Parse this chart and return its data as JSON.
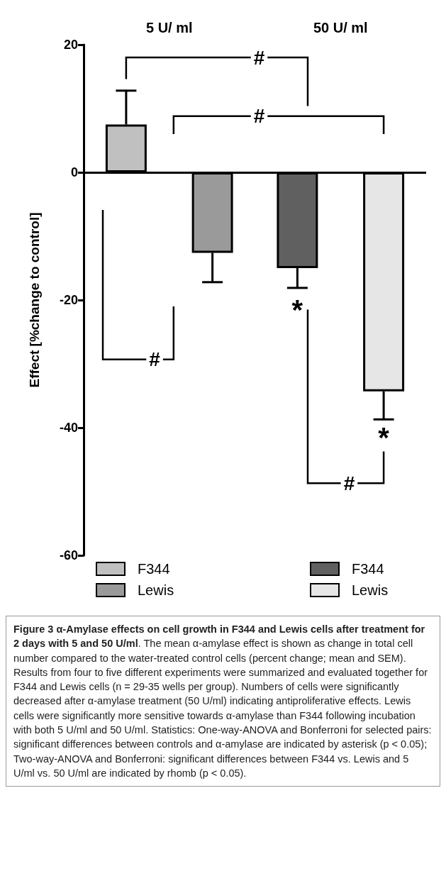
{
  "chart_data": {
    "type": "bar",
    "title": "Figure 3 α-Amylase effects on cell growth in F344 and Lewis cells after treatment for 2 days with 5 and 50 U/ml",
    "ylabel": "Effect [%change to control]",
    "categories": [
      "5 U/ ml",
      "50 U/ ml"
    ],
    "series": [
      {
        "name": "F344",
        "colors": [
          "#c0c0c0",
          "#606060"
        ],
        "values": [
          7.5,
          -15
        ],
        "errors": [
          5.3,
          3.1
        ]
      },
      {
        "name": "Lewis",
        "colors": [
          "#9a9a9a",
          "#e6e6e6"
        ],
        "values": [
          -12.6,
          -34.3
        ],
        "errors": [
          4.6,
          4.4
        ]
      }
    ],
    "ylim": [
      -60,
      20
    ],
    "yticks": [
      -60,
      -40,
      -20,
      0,
      20
    ],
    "legend": "bottom",
    "ref_lines": [
      {
        "axis": "y",
        "value": 0,
        "color": "#000000"
      }
    ],
    "annotations": [
      "#",
      "#",
      "#",
      "#",
      "*",
      "*",
      ". The mean α-amylase effect is shown as change in total cell number compared to the water-treated control cells (percent change; mean and SEM). Results from four to five different experiments were summarized and evaluated together for F344 and Lewis cells (n = 29-35 wells per group). Numbers of cells were significantly decreased after α-amylase treatment (50 U/ml) indicating antiproliferative effects. Lewis cells were significantly more sensitive towards α-amylase than F344 following incubation with both 5 U/ml and 50 U/ml. Statistics: One-way-ANOVA and Bonferroni for selected pairs: significant differences between controls and α-amylase are indicated by asterisk (p < 0.05); Two-way-ANOVA and Bonferroni: significant differences between F344 vs. Lewis and 5 U/ml vs. 50 U/ml are indicated by rhomb (p < 0.05)."
    ]
  }
}
